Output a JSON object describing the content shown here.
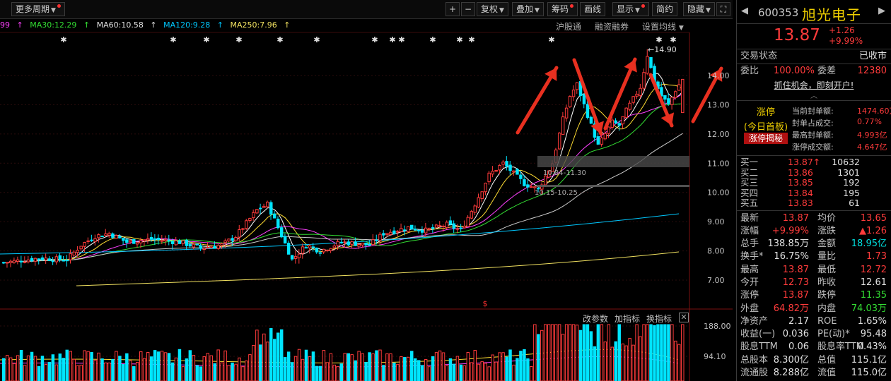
{
  "toolbar": {
    "left_button": "更多周期",
    "plus": "+",
    "minus": "−",
    "fuquan": "复权",
    "diejia": "叠加",
    "chouma": "筹码",
    "huaxian": "画线",
    "xianshi": "显示",
    "jianyue": "简约",
    "yincang": "隐藏",
    "fullscreen": "⛶"
  },
  "ma_legend": [
    {
      "label": "99",
      "color": "#ff40ff"
    },
    {
      "label": "MA30:12.29",
      "color": "#33dd33"
    },
    {
      "label": "MA60:10.58",
      "color": "#e0e0e0"
    },
    {
      "label": "MA120:9.28",
      "color": "#00c8ff"
    },
    {
      "label": "MA250:7.96",
      "color": "#f0e060"
    }
  ],
  "links": {
    "hgt": "沪股通",
    "rzrq": "融资融券",
    "settings": "设置均线"
  },
  "price_axis": [
    "14.00",
    "13.00",
    "12.00",
    "11.00",
    "10.00",
    "9.00",
    "8.00",
    "7.00"
  ],
  "volume_axis": [
    "188.00",
    "94.10"
  ],
  "annotations": {
    "high": "←14.90",
    "box1": "10.84-11.30",
    "box2": "10.15-10.25",
    "dollar": "$"
  },
  "sub_header": {
    "params": "改参数",
    "add": "加指标",
    "switch": "换指标",
    "close": "✕"
  },
  "chart_data": {
    "type": "candlestick",
    "last_close": 13.87,
    "high": 14.9,
    "ylim": [
      6.5,
      15.4
    ],
    "ma_lines": [
      "MA30",
      "MA60",
      "MA120",
      "MA250"
    ]
  },
  "panel": {
    "code": "600353",
    "name": "旭光电子",
    "nav_left": "◀",
    "nav_right": "▶",
    "price": "13.87",
    "change": "+1.26",
    "change_pct": "+9.99%",
    "status_label": "交易状态",
    "status_value": "已收市",
    "weibi_label": "委比",
    "weibi_value": "100.00%",
    "weicha_label": "委差",
    "weicha_value": "12380",
    "open_account": "抓住机会，即刻开户!",
    "chevron": "︿",
    "limit_title": "涨停",
    "limit_sub": "(今日首板)",
    "limit_btn": "涨停揭秘",
    "limit_lines": [
      {
        "label": "当前封单额:",
        "value": "1474.60万"
      },
      {
        "label": "封单占成交:",
        "value": "0.77%"
      },
      {
        "label": "最高封单额:",
        "value": "4.993亿"
      },
      {
        "label": "涨停成交额:",
        "value": "4.647亿"
      }
    ],
    "orderbook": [
      {
        "label": "买一",
        "price": "13.87",
        "vol": "10632",
        "arrow": "↑"
      },
      {
        "label": "买二",
        "price": "13.86",
        "vol": "1301",
        "arrow": ""
      },
      {
        "label": "买三",
        "price": "13.85",
        "vol": "192",
        "arrow": ""
      },
      {
        "label": "买四",
        "price": "13.84",
        "vol": "195",
        "arrow": ""
      },
      {
        "label": "买五",
        "price": "13.83",
        "vol": "61",
        "arrow": ""
      }
    ],
    "quotes": [
      {
        "l1": "最新",
        "v1": "13.87",
        "c1": "red",
        "l2": "均价",
        "v2": "13.65",
        "c2": "red"
      },
      {
        "l1": "涨幅",
        "v1": "+9.99%",
        "c1": "red",
        "l2": "涨跌",
        "v2": "▲1.26",
        "c2": "red"
      },
      {
        "l1": "总手",
        "v1": "138.85万",
        "c1": "white",
        "l2": "金额",
        "v2": "18.95亿",
        "c2": "cyan"
      },
      {
        "l1": "换手*",
        "v1": "16.75%",
        "c1": "white",
        "l2": "量比",
        "v2": "1.73",
        "c2": "red"
      },
      {
        "l1": "最高",
        "v1": "13.87",
        "c1": "red",
        "l2": "最低",
        "v2": "12.72",
        "c2": "red"
      },
      {
        "l1": "今开",
        "v1": "12.73",
        "c1": "red",
        "l2": "昨收",
        "v2": "12.61",
        "c2": "white"
      },
      {
        "l1": "涨停",
        "v1": "13.87",
        "c1": "red",
        "l2": "跌停",
        "v2": "11.35",
        "c2": "green"
      },
      {
        "l1": "外盘",
        "v1": "64.82万",
        "c1": "red",
        "l2": "内盘",
        "v2": "74.03万",
        "c2": "green"
      },
      {
        "l1": "净资产",
        "v1": "2.17",
        "c1": "white",
        "l2": "ROE",
        "v2": "1.65%",
        "c2": "white"
      },
      {
        "l1": "收益(一)",
        "v1": "0.036",
        "c1": "white",
        "l2": "PE(动)*",
        "v2": "95.48",
        "c2": "white"
      },
      {
        "l1": "股息TTM",
        "v1": "0.06",
        "c1": "white",
        "l2": "股息率TTM",
        "v2": "0.43%",
        "c2": "white"
      },
      {
        "l1": "总股本",
        "v1": "8.300亿",
        "c1": "white",
        "l2": "总值",
        "v2": "115.1亿",
        "c2": "white"
      },
      {
        "l1": "流通股",
        "v1": "8.288亿",
        "c1": "white",
        "l2": "流值",
        "v2": "115.0亿",
        "c2": "white"
      }
    ]
  }
}
